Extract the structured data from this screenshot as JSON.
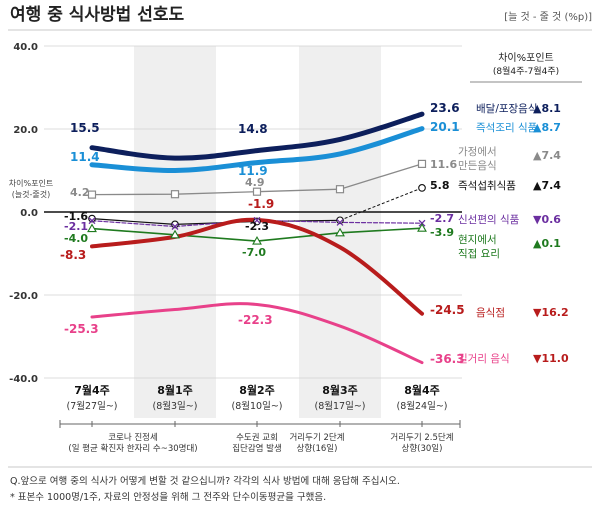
{
  "title": "여행 중 식사방법 선호도",
  "scale_note": "[늘 것 - 줄 것 (%p)]",
  "diff_header": {
    "line1": "차이%포인트",
    "line2": "(8월4주-7월4주)"
  },
  "yaxis_note": {
    "line1": "차이%포인트",
    "line2": "(늘것-줄것)"
  },
  "periods": [
    {
      "label": "7월4주",
      "sub": "(7월27일~)"
    },
    {
      "label": "8월1주",
      "sub": "(8월3일~)"
    },
    {
      "label": "8월2주",
      "sub": "(8월10일~)"
    },
    {
      "label": "8월3주",
      "sub": "(8월17일~)"
    },
    {
      "label": "8월4주",
      "sub": "(8월24일~)"
    }
  ],
  "events": [
    {
      "id": "e1",
      "lines": [
        "코로나 진정세",
        "(일 평균 확진자 한자리 수~30명대)"
      ]
    },
    {
      "id": "e2",
      "lines": [
        "수도권 교회",
        "집단감염 발생"
      ]
    },
    {
      "id": "e3",
      "lines": [
        "거리두기 2단계",
        "상향(16일)"
      ]
    },
    {
      "id": "e4",
      "lines": [
        "거리두기 2.5단계",
        "상향(30일)"
      ]
    }
  ],
  "footnotes": [
    "Q.앞으로 여행 중의 식사가 어떻게 변할 것 같으십니까? 각각의 식사 방법에 대해 응답해 주십시오.",
    "* 표본수 1000명/1주, 자료의 안정성을 위해 그 전주와 단수이동평균을 구했음."
  ],
  "chart_data": {
    "type": "line",
    "title": "여행 중 식사방법 선호도",
    "ylabel": "차이%포인트 (늘것-줄것)",
    "ylim": [
      -40,
      40
    ],
    "yticks": [
      {
        "value": 40,
        "label": "40.0"
      },
      {
        "value": 20,
        "label": "20.0"
      },
      {
        "value": 0,
        "label": "0.0"
      },
      {
        "value": -20,
        "label": "-20.0"
      },
      {
        "value": -40,
        "label": "-40.0"
      }
    ],
    "categories": [
      "7월4주",
      "8월1주",
      "8월2주",
      "8월3주",
      "8월4주"
    ],
    "series": [
      {
        "id": "delivery",
        "name": "배달/포장음식",
        "color": "#0d1f5c",
        "values": [
          15.5,
          13.0,
          14.8,
          17.5,
          23.6
        ],
        "labels": [
          "15.5",
          "",
          "14.8",
          "",
          "23.6"
        ],
        "diff": {
          "arrow": "▲",
          "value": "8.1",
          "color": "#0d1f5c"
        }
      },
      {
        "id": "instant_cook",
        "name": "즉석조리 식품",
        "color": "#1a8fd6",
        "values": [
          11.4,
          10.0,
          11.9,
          14.0,
          20.1
        ],
        "labels": [
          "11.4",
          "",
          "11.9",
          "",
          "20.1"
        ],
        "diff": {
          "arrow": "▲",
          "value": "8.7",
          "color": "#1a8fd6"
        }
      },
      {
        "id": "homemade",
        "name": "가정에서 만든음식",
        "color": "#8a8a8a",
        "name_lines": [
          "가정에서",
          "만든음식"
        ],
        "values": [
          4.2,
          4.3,
          4.9,
          5.5,
          11.6
        ],
        "labels": [
          "4.2",
          "",
          "4.9",
          "",
          "11.6"
        ],
        "diff": {
          "arrow": "▲",
          "value": "7.4",
          "color": "#8a8a8a"
        }
      },
      {
        "id": "instant_ready",
        "name": "즉석섭취식품",
        "color": "#111111",
        "values": [
          -1.6,
          -3.0,
          -2.3,
          -2.0,
          5.8
        ],
        "labels": [
          "-1.6",
          "",
          "-2.3",
          "",
          "5.8"
        ],
        "diff": {
          "arrow": "▲",
          "value": "7.4",
          "color": "#111111"
        }
      },
      {
        "id": "convenience",
        "name": "신선편의 식품",
        "color": "#6b2fa0",
        "values": [
          -2.1,
          -3.5,
          -2.0,
          -2.5,
          -2.7
        ],
        "labels": [
          "-2.1",
          "",
          "",
          "",
          "-2.7"
        ],
        "diff": {
          "arrow": "▼",
          "value": "0.6",
          "color": "#6b2fa0"
        }
      },
      {
        "id": "local_cook",
        "name": "현지에서 직접 요리",
        "color": "#1f7a1f",
        "name_lines": [
          "현지에서",
          "직접 요리"
        ],
        "values": [
          -4.0,
          -5.5,
          -7.0,
          -5.0,
          -3.9
        ],
        "labels": [
          "-4.0",
          "",
          "-7.0",
          "",
          "-3.9"
        ],
        "diff": {
          "arrow": "▲",
          "value": "0.1",
          "color": "#1f7a1f"
        }
      },
      {
        "id": "restaurant",
        "name": "음식점",
        "color": "#b81c1c",
        "values": [
          -8.3,
          -6.0,
          -1.9,
          -8.5,
          -24.5
        ],
        "labels": [
          "-8.3",
          "",
          "-1.9",
          "",
          "-24.5"
        ],
        "diff": {
          "arrow": "▼",
          "value": "16.2",
          "color": "#b81c1c"
        }
      },
      {
        "id": "street_food",
        "name": "길거리 음식",
        "color": "#e8418a",
        "values": [
          -25.3,
          -23.5,
          -22.3,
          -27.5,
          -36.3
        ],
        "labels": [
          "-25.3",
          "",
          "-22.3",
          "",
          "-36.3"
        ],
        "diff": {
          "arrow": "▼",
          "value": "11.0",
          "color": "#b81c1c"
        }
      }
    ]
  }
}
